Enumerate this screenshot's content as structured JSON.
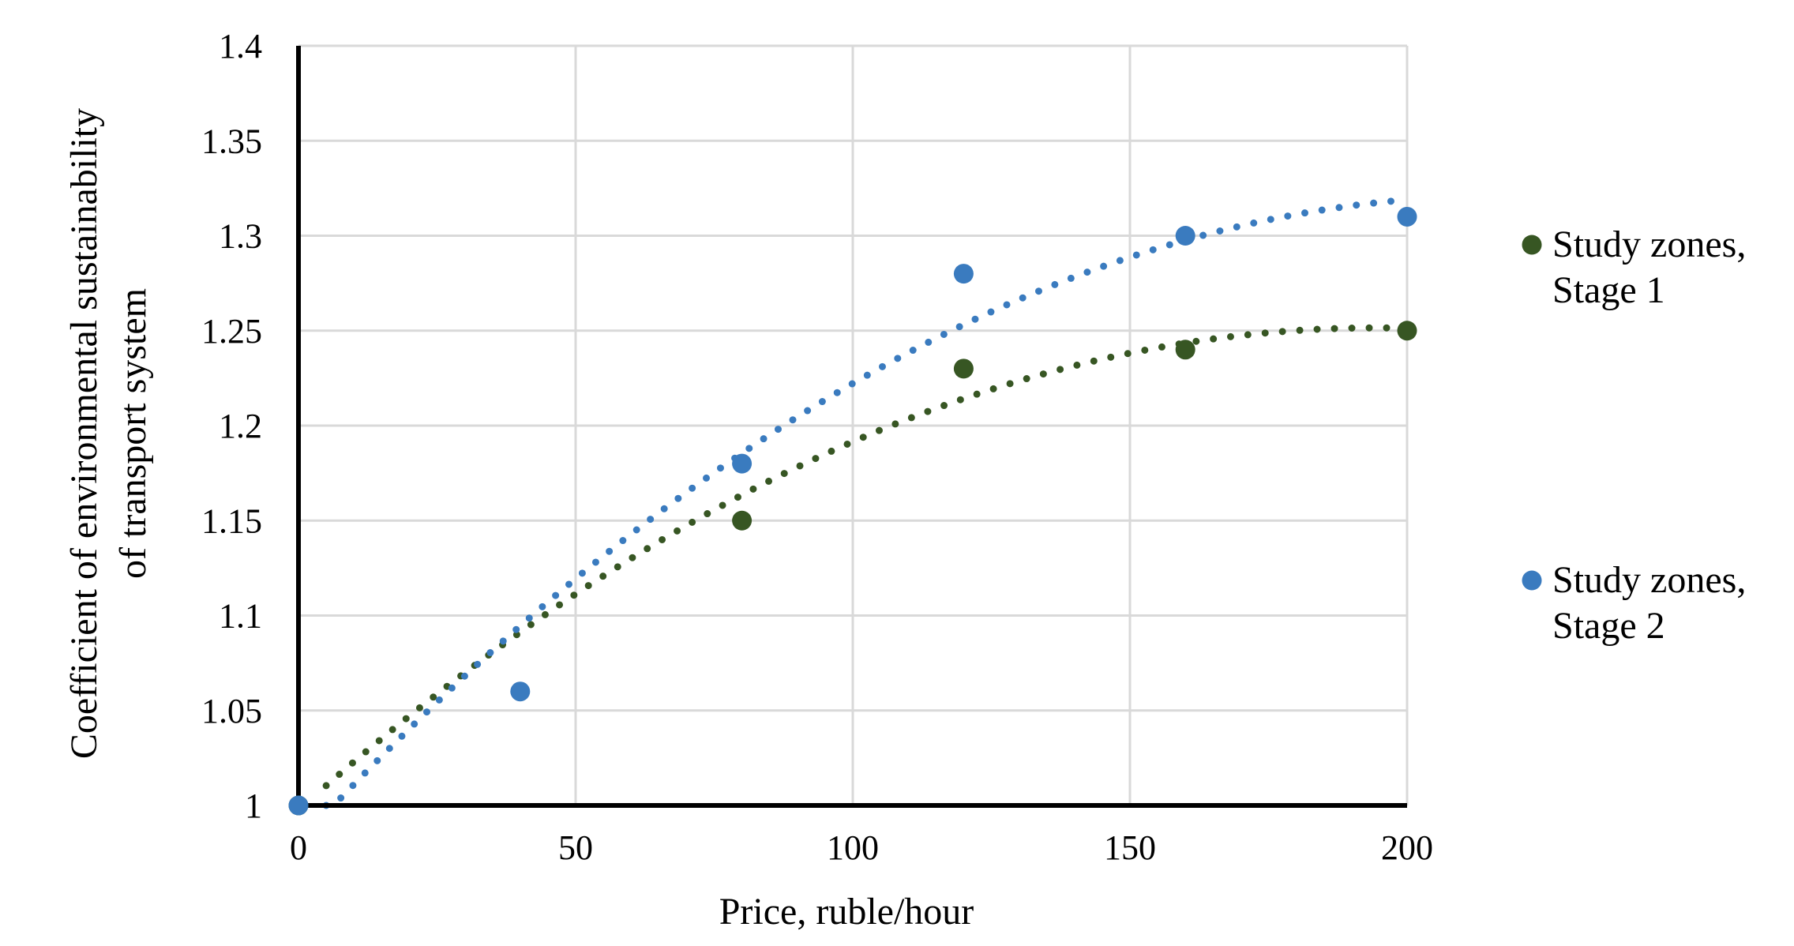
{
  "chart_data": {
    "type": "scatter",
    "title": "",
    "xlabel": "Price, ruble/hour",
    "ylabel_lines": [
      "Coefficient of environmental sustainability",
      "of transport system"
    ],
    "xlim": [
      0,
      200
    ],
    "ylim": [
      1,
      1.4
    ],
    "xticks": [
      0,
      50,
      100,
      150,
      200
    ],
    "xtick_labels": [
      "0",
      "50",
      "100",
      "150",
      "200"
    ],
    "yticks": [
      1,
      1.05,
      1.1,
      1.15,
      1.2,
      1.25,
      1.3,
      1.35,
      1.4
    ],
    "ytick_labels": [
      "1",
      "1.05",
      "1.1",
      "1.15",
      "1.2",
      "1.25",
      "1.3",
      "1.35",
      "1.4"
    ],
    "grid": true,
    "legend_position": "right",
    "series": [
      {
        "name_lines": [
          "Study zones,",
          "Stage 1"
        ],
        "color": "#375623",
        "trendline": "polynomial, dotted",
        "points": [
          {
            "x": 0,
            "y": 1.0
          },
          {
            "x": 80,
            "y": 1.15
          },
          {
            "x": 120,
            "y": 1.23
          },
          {
            "x": 160,
            "y": 1.24
          },
          {
            "x": 200,
            "y": 1.25
          }
        ]
      },
      {
        "name_lines": [
          "Study zones,",
          "Stage 2"
        ],
        "color": "#3a7bbf",
        "trendline": "polynomial, dotted",
        "points": [
          {
            "x": 0,
            "y": 1.0
          },
          {
            "x": 40,
            "y": 1.06
          },
          {
            "x": 80,
            "y": 1.18
          },
          {
            "x": 120,
            "y": 1.28
          },
          {
            "x": 160,
            "y": 1.3
          },
          {
            "x": 200,
            "y": 1.31
          }
        ]
      }
    ]
  }
}
